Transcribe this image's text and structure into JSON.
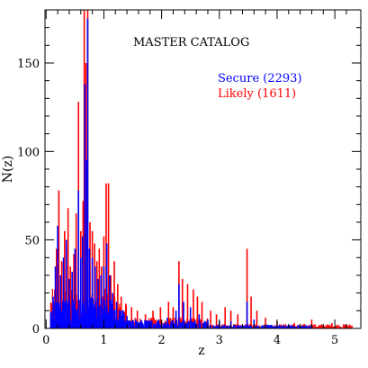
{
  "chart_data": {
    "type": "histogram",
    "title": "MASTER CATALOG",
    "xlabel": "z",
    "ylabel": "N(z)",
    "xlim": [
      -0.02,
      5.45
    ],
    "ylim": [
      0,
      180
    ],
    "x_ticks": [
      0,
      1,
      2,
      3,
      4,
      5
    ],
    "y_ticks": [
      0,
      50,
      100,
      150
    ],
    "bin_width": 0.01,
    "series": [
      {
        "name": "Likely (1611)",
        "color": "#ff0000",
        "peaks": [
          {
            "x": 0.15,
            "y": 22
          },
          {
            "x": 0.18,
            "y": 45
          },
          {
            "x": 0.22,
            "y": 78
          },
          {
            "x": 0.27,
            "y": 38
          },
          {
            "x": 0.32,
            "y": 55
          },
          {
            "x": 0.38,
            "y": 68
          },
          {
            "x": 0.42,
            "y": 35
          },
          {
            "x": 0.48,
            "y": 42
          },
          {
            "x": 0.52,
            "y": 65
          },
          {
            "x": 0.56,
            "y": 128
          },
          {
            "x": 0.6,
            "y": 55
          },
          {
            "x": 0.64,
            "y": 72
          },
          {
            "x": 0.66,
            "y": 180
          },
          {
            "x": 0.69,
            "y": 150
          },
          {
            "x": 0.72,
            "y": 180
          },
          {
            "x": 0.76,
            "y": 60
          },
          {
            "x": 0.8,
            "y": 55
          },
          {
            "x": 0.84,
            "y": 48
          },
          {
            "x": 0.88,
            "y": 38
          },
          {
            "x": 0.92,
            "y": 45
          },
          {
            "x": 0.96,
            "y": 35
          },
          {
            "x": 1.0,
            "y": 52
          },
          {
            "x": 1.04,
            "y": 82
          },
          {
            "x": 1.08,
            "y": 82
          },
          {
            "x": 1.12,
            "y": 30
          },
          {
            "x": 1.18,
            "y": 38
          },
          {
            "x": 1.24,
            "y": 25
          },
          {
            "x": 1.3,
            "y": 18
          },
          {
            "x": 1.38,
            "y": 14
          },
          {
            "x": 1.48,
            "y": 12
          },
          {
            "x": 1.58,
            "y": 10
          },
          {
            "x": 1.72,
            "y": 8
          },
          {
            "x": 1.85,
            "y": 10
          },
          {
            "x": 1.98,
            "y": 12
          },
          {
            "x": 2.12,
            "y": 15
          },
          {
            "x": 2.2,
            "y": 12
          },
          {
            "x": 2.3,
            "y": 38
          },
          {
            "x": 2.36,
            "y": 28
          },
          {
            "x": 2.45,
            "y": 25
          },
          {
            "x": 2.55,
            "y": 22
          },
          {
            "x": 2.62,
            "y": 18
          },
          {
            "x": 2.7,
            "y": 15
          },
          {
            "x": 2.85,
            "y": 10
          },
          {
            "x": 2.95,
            "y": 8
          },
          {
            "x": 3.1,
            "y": 12
          },
          {
            "x": 3.2,
            "y": 10
          },
          {
            "x": 3.32,
            "y": 8
          },
          {
            "x": 3.48,
            "y": 45
          },
          {
            "x": 3.55,
            "y": 18
          },
          {
            "x": 3.65,
            "y": 10
          },
          {
            "x": 3.8,
            "y": 6
          },
          {
            "x": 4.0,
            "y": 4
          },
          {
            "x": 4.3,
            "y": 3
          },
          {
            "x": 4.6,
            "y": 5
          },
          {
            "x": 4.95,
            "y": 3
          },
          {
            "x": 5.25,
            "y": 2
          }
        ]
      },
      {
        "name": "Secure (2293)",
        "color": "#0000ff",
        "peaks": [
          {
            "x": 0.12,
            "y": 18
          },
          {
            "x": 0.16,
            "y": 35
          },
          {
            "x": 0.2,
            "y": 58
          },
          {
            "x": 0.25,
            "y": 30
          },
          {
            "x": 0.3,
            "y": 40
          },
          {
            "x": 0.35,
            "y": 50
          },
          {
            "x": 0.4,
            "y": 28
          },
          {
            "x": 0.45,
            "y": 32
          },
          {
            "x": 0.5,
            "y": 45
          },
          {
            "x": 0.56,
            "y": 78
          },
          {
            "x": 0.6,
            "y": 40
          },
          {
            "x": 0.63,
            "y": 52
          },
          {
            "x": 0.67,
            "y": 138
          },
          {
            "x": 0.7,
            "y": 95
          },
          {
            "x": 0.72,
            "y": 175
          },
          {
            "x": 0.75,
            "y": 45
          },
          {
            "x": 0.8,
            "y": 40
          },
          {
            "x": 0.85,
            "y": 35
          },
          {
            "x": 0.9,
            "y": 28
          },
          {
            "x": 0.95,
            "y": 30
          },
          {
            "x": 1.0,
            "y": 35
          },
          {
            "x": 1.05,
            "y": 48
          },
          {
            "x": 1.1,
            "y": 30
          },
          {
            "x": 1.15,
            "y": 20
          },
          {
            "x": 1.22,
            "y": 15
          },
          {
            "x": 1.3,
            "y": 10
          },
          {
            "x": 1.4,
            "y": 7
          },
          {
            "x": 1.55,
            "y": 5
          },
          {
            "x": 1.75,
            "y": 4
          },
          {
            "x": 1.95,
            "y": 5
          },
          {
            "x": 2.1,
            "y": 6
          },
          {
            "x": 2.25,
            "y": 10
          },
          {
            "x": 2.3,
            "y": 25
          },
          {
            "x": 2.38,
            "y": 15
          },
          {
            "x": 2.5,
            "y": 12
          },
          {
            "x": 2.65,
            "y": 8
          },
          {
            "x": 2.8,
            "y": 5
          },
          {
            "x": 3.0,
            "y": 4
          },
          {
            "x": 3.2,
            "y": 4
          },
          {
            "x": 3.48,
            "y": 15
          },
          {
            "x": 3.6,
            "y": 5
          },
          {
            "x": 3.9,
            "y": 2
          },
          {
            "x": 4.5,
            "y": 1
          }
        ]
      }
    ]
  }
}
